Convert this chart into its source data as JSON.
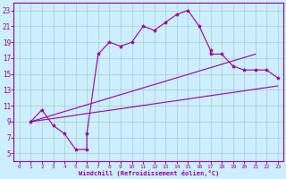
{
  "xlabel": "Windchill (Refroidissement éolien,°C)",
  "bg_color": "#cceeff",
  "line_color": "#990099",
  "grid_color": "#aacccc",
  "xlim": [
    -0.5,
    23.5
  ],
  "ylim": [
    4,
    24
  ],
  "xticks": [
    0,
    1,
    2,
    3,
    4,
    5,
    6,
    7,
    8,
    9,
    10,
    11,
    12,
    13,
    14,
    15,
    16,
    17,
    18,
    19,
    20,
    21,
    22,
    23
  ],
  "yticks": [
    5,
    7,
    9,
    11,
    13,
    15,
    17,
    19,
    21,
    23
  ],
  "zigzag_x": [
    1,
    2,
    3,
    4,
    5,
    6,
    6,
    7,
    8,
    9,
    10,
    11,
    12,
    13,
    14,
    15,
    16,
    17,
    17,
    18,
    19,
    20,
    21,
    22,
    23
  ],
  "zigzag_y": [
    9,
    10.5,
    8.5,
    7.5,
    5.5,
    5.5,
    7.5,
    17.5,
    19,
    18.5,
    19,
    21,
    20.5,
    21.5,
    22.5,
    23,
    21,
    18,
    17.5,
    17.5,
    16,
    15.5,
    15.5,
    15.5,
    14.5
  ],
  "line2_x": [
    1,
    23
  ],
  "line2_y": [
    9,
    13.5
  ],
  "line3_x": [
    1,
    21
  ],
  "line3_y": [
    9,
    17.5
  ]
}
